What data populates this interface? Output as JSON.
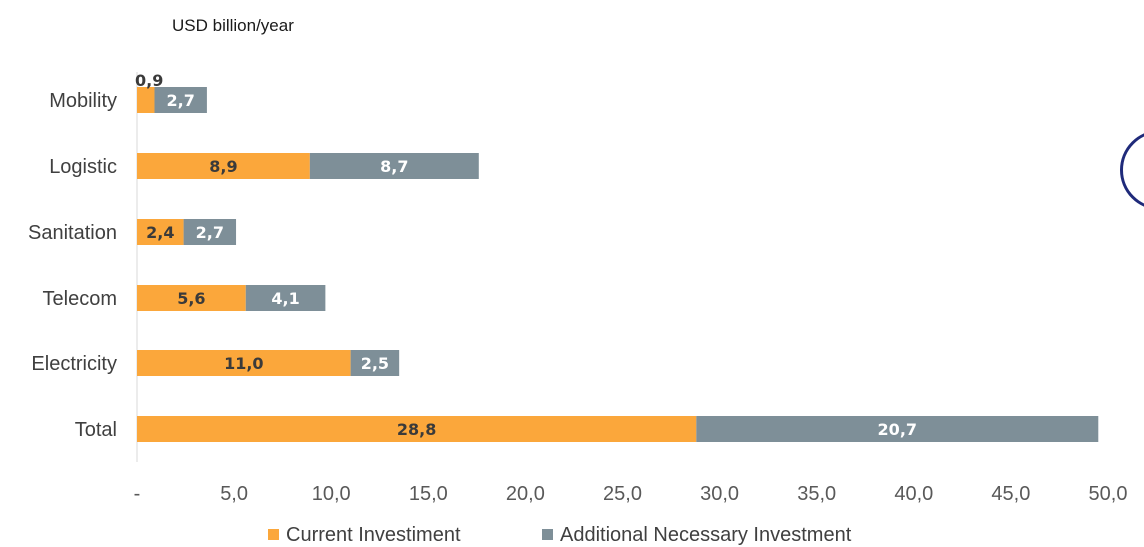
{
  "chart_data": {
    "type": "bar",
    "orientation": "horizontal",
    "stacked": true,
    "unit_label": "USD billion/year",
    "categories": [
      "Mobility",
      "Logistic",
      "Sanitation",
      "Telecom",
      "Electricity",
      "Total"
    ],
    "series": [
      {
        "name": "Current Investiment",
        "color": "#FBA73B",
        "label_color": "#3a3a3a",
        "values": [
          0.9,
          8.9,
          2.4,
          5.6,
          11.0,
          28.8
        ],
        "labels": [
          "0,9",
          "8,9",
          "2,4",
          "5,6",
          "11,0",
          "28,8"
        ]
      },
      {
        "name": "Additional Necessary Investment",
        "color": "#7E8F98",
        "label_color": "#ffffff",
        "values": [
          2.7,
          8.7,
          2.7,
          4.1,
          2.5,
          20.7
        ],
        "labels": [
          "2,7",
          "8,7",
          "2,7",
          "4,1",
          "2,5",
          "20,7"
        ]
      }
    ],
    "x_ticks": [
      0,
      5,
      10,
      15,
      20,
      25,
      30,
      35,
      40,
      45,
      50
    ],
    "x_tick_labels": [
      "-",
      "5,0",
      "10,0",
      "15,0",
      "20,0",
      "25,0",
      "30,0",
      "35,0",
      "40,0",
      "45,0",
      "50,0"
    ],
    "xlim": [
      0,
      50
    ],
    "grid": false,
    "legend_position": "bottom"
  }
}
